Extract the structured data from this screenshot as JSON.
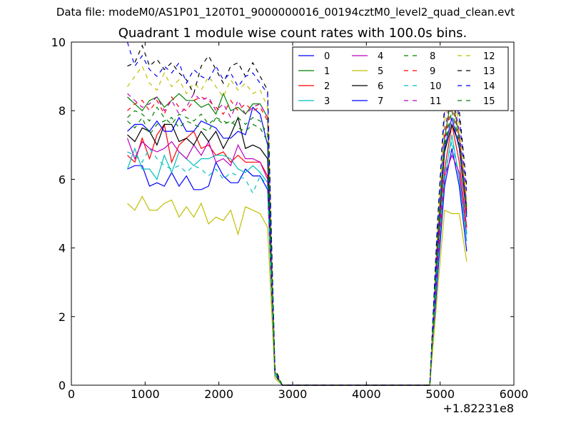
{
  "suptitle": "Data file: modeM0/AS1P01_120T01_9000000016_00194cztM0_level2_quad_clean.evt",
  "chart_data": {
    "type": "line",
    "title": "Quadrant 1 module wise count rates with 100.0s bins.",
    "xlabel": "",
    "ylabel": "",
    "xlim": [
      0,
      6000
    ],
    "ylim": [
      0,
      10
    ],
    "x_offset_label": "+1.82231e8",
    "x_ticks": [
      0,
      1000,
      2000,
      3000,
      4000,
      5000,
      6000
    ],
    "y_ticks": [
      0,
      2,
      4,
      6,
      8,
      10
    ],
    "grid": false,
    "legend_position": "top-right",
    "legend_columns": 4,
    "x": [
      760,
      860,
      960,
      1060,
      1160,
      1260,
      1360,
      1460,
      1560,
      1660,
      1760,
      1860,
      1960,
      2060,
      2160,
      2260,
      2360,
      2460,
      2560,
      2660,
      2760,
      2860,
      2960,
      3060,
      3160,
      3260,
      3360,
      3460,
      3560,
      3660,
      3760,
      3860,
      3960,
      4060,
      4160,
      4260,
      4360,
      4460,
      4560,
      4660,
      4760,
      4860,
      4960,
      5060,
      5160,
      5260,
      5360
    ],
    "series": [
      {
        "name": "0",
        "color": "#0000ff",
        "dash": "solid",
        "values": [
          6.3,
          6.4,
          6.4,
          5.8,
          5.9,
          5.8,
          6.2,
          5.8,
          6.1,
          5.7,
          5.7,
          5.8,
          6.5,
          6.1,
          5.9,
          5.9,
          6.3,
          6.1,
          6.1,
          5.7,
          0.3,
          0,
          0,
          0,
          0,
          0,
          0,
          0,
          0,
          0,
          0,
          0,
          0,
          0,
          0,
          0,
          0,
          0,
          0,
          0,
          0,
          0,
          3.0,
          5.8,
          6.9,
          5.8,
          3.9
        ]
      },
      {
        "name": "1",
        "color": "#008000",
        "dash": "solid",
        "values": [
          8.4,
          8.2,
          8.0,
          8.3,
          8.4,
          8.1,
          8.3,
          8.5,
          8.3,
          8.3,
          8.1,
          8.2,
          7.9,
          8.5,
          8.0,
          8.1,
          7.9,
          8.2,
          8.2,
          7.8,
          0.4,
          0,
          0,
          0,
          0,
          0,
          0,
          0,
          0,
          0,
          0,
          0,
          0,
          0,
          0,
          0,
          0,
          0,
          0,
          0,
          0,
          0,
          4.2,
          7.2,
          8.5,
          7.2,
          5.2
        ]
      },
      {
        "name": "2",
        "color": "#ff0000",
        "dash": "solid",
        "values": [
          6.7,
          6.5,
          7.2,
          6.6,
          7.3,
          7.6,
          6.5,
          7.0,
          7.2,
          7.4,
          6.9,
          7.0,
          6.7,
          6.8,
          6.5,
          6.7,
          6.5,
          6.5,
          6.5,
          6.1,
          0.3,
          0,
          0,
          0,
          0,
          0,
          0,
          0,
          0,
          0,
          0,
          0,
          0,
          0,
          0,
          0,
          0,
          0,
          0,
          0,
          0,
          0,
          3.6,
          6.3,
          7.6,
          6.5,
          4.6
        ]
      },
      {
        "name": "3",
        "color": "#00bfbf",
        "dash": "solid",
        "values": [
          6.3,
          6.9,
          6.3,
          6.3,
          6.0,
          6.7,
          6.2,
          6.8,
          6.6,
          6.4,
          6.6,
          6.6,
          6.7,
          6.7,
          6.6,
          6.3,
          6.2,
          6.4,
          6.2,
          5.9,
          0.3,
          0,
          0,
          0,
          0,
          0,
          0,
          0,
          0,
          0,
          0,
          0,
          0,
          0,
          0,
          0,
          0,
          0,
          0,
          0,
          0,
          0,
          3.3,
          6.0,
          7.3,
          6.0,
          4.2
        ]
      },
      {
        "name": "4",
        "color": "#bf00bf",
        "dash": "solid",
        "values": [
          7.2,
          6.6,
          7.1,
          6.9,
          6.8,
          6.9,
          7.1,
          6.8,
          6.6,
          7.0,
          6.7,
          7.1,
          6.5,
          6.6,
          6.4,
          7.0,
          6.6,
          6.6,
          6.5,
          6.0,
          0.3,
          0,
          0,
          0,
          0,
          0,
          0,
          0,
          0,
          0,
          0,
          0,
          0,
          0,
          0,
          0,
          0,
          0,
          0,
          0,
          0,
          0,
          3.4,
          6.1,
          6.7,
          6.2,
          4.4
        ]
      },
      {
        "name": "5",
        "color": "#bfbf00",
        "dash": "solid",
        "values": [
          5.3,
          5.1,
          5.5,
          5.1,
          5.1,
          5.3,
          5.4,
          4.9,
          5.2,
          4.9,
          5.3,
          4.7,
          4.9,
          4.8,
          5.1,
          4.4,
          5.2,
          5.1,
          5.0,
          4.6,
          0.2,
          0,
          0,
          0,
          0,
          0,
          0,
          0,
          0,
          0,
          0,
          0,
          0,
          0,
          0,
          0,
          0,
          0,
          0,
          0,
          0,
          0,
          2.6,
          5.1,
          5.0,
          5.0,
          3.6
        ]
      },
      {
        "name": "6",
        "color": "#000000",
        "dash": "solid",
        "values": [
          7.3,
          7.1,
          7.5,
          7.4,
          7.0,
          7.6,
          7.6,
          7.1,
          7.2,
          7.0,
          7.4,
          7.1,
          7.4,
          6.9,
          7.3,
          7.8,
          6.9,
          7.0,
          6.9,
          6.6,
          0.3,
          0,
          0,
          0,
          0,
          0,
          0,
          0,
          0,
          0,
          0,
          0,
          0,
          0,
          0,
          0,
          0,
          0,
          0,
          0,
          0,
          0,
          3.9,
          6.8,
          7.6,
          7.0,
          5.0
        ]
      },
      {
        "name": "7",
        "color": "#0000ff",
        "dash": "solid",
        "values": [
          7.4,
          7.6,
          7.6,
          7.4,
          7.7,
          7.4,
          7.4,
          7.8,
          7.4,
          7.4,
          7.7,
          7.6,
          7.5,
          7.2,
          7.2,
          7.4,
          7.3,
          8.1,
          7.9,
          7.0,
          0.4,
          0,
          0,
          0,
          0,
          0,
          0,
          0,
          0,
          0,
          0,
          0,
          0,
          0,
          0,
          0,
          0,
          0,
          0,
          0,
          0,
          0,
          3.9,
          6.9,
          7.8,
          6.9,
          4.9
        ]
      },
      {
        "name": "8",
        "color": "#008000",
        "dash": "dashed",
        "values": [
          7.7,
          7.5,
          7.8,
          7.3,
          7.6,
          7.7,
          7.8,
          7.5,
          7.7,
          7.6,
          7.5,
          7.4,
          7.8,
          7.6,
          7.7,
          7.5,
          7.4,
          7.6,
          7.5,
          7.1,
          0.3,
          0,
          0,
          0,
          0,
          0,
          0,
          0,
          0,
          0,
          0,
          0,
          0,
          0,
          0,
          0,
          0,
          0,
          0,
          0,
          0,
          0,
          4.0,
          7.0,
          8.0,
          7.0,
          5.0
        ]
      },
      {
        "name": "9",
        "color": "#ff0000",
        "dash": "dashed",
        "values": [
          8.0,
          8.2,
          8.3,
          8.0,
          8.3,
          7.9,
          8.4,
          8.1,
          8.0,
          8.3,
          8.4,
          8.3,
          8.1,
          7.9,
          8.3,
          8.0,
          8.2,
          8.0,
          8.1,
          7.7,
          0.4,
          0,
          0,
          0,
          0,
          0,
          0,
          0,
          0,
          0,
          0,
          0,
          0,
          0,
          0,
          0,
          0,
          0,
          0,
          0,
          0,
          0,
          4.1,
          7.2,
          8.2,
          7.2,
          5.1
        ]
      },
      {
        "name": "10",
        "color": "#00bfbf",
        "dash": "dashed",
        "values": [
          6.8,
          6.7,
          6.5,
          6.9,
          6.6,
          6.4,
          6.3,
          6.4,
          6.2,
          6.4,
          6.3,
          6.1,
          6.3,
          6.0,
          6.2,
          6.1,
          6.0,
          5.6,
          6.1,
          5.8,
          0.3,
          0,
          0,
          0,
          0,
          0,
          0,
          0,
          0,
          0,
          0,
          0,
          0,
          0,
          0,
          0,
          0,
          0,
          0,
          0,
          0,
          0,
          3.4,
          6.2,
          7.1,
          6.0,
          4.4
        ]
      },
      {
        "name": "11",
        "color": "#bf00bf",
        "dash": "dashed",
        "values": [
          8.5,
          8.3,
          8.1,
          8.2,
          8.4,
          8.0,
          8.3,
          7.9,
          8.1,
          8.5,
          8.3,
          8.4,
          8.0,
          8.2,
          7.8,
          8.3,
          7.9,
          8.1,
          8.2,
          7.8,
          0.4,
          0,
          0,
          0,
          0,
          0,
          0,
          0,
          0,
          0,
          0,
          0,
          0,
          0,
          0,
          0,
          0,
          0,
          0,
          0,
          0,
          0,
          4.2,
          7.4,
          8.6,
          7.4,
          5.3
        ]
      },
      {
        "name": "12",
        "color": "#bfbf00",
        "dash": "dashed",
        "values": [
          8.7,
          9.0,
          9.3,
          8.8,
          8.6,
          9.1,
          8.7,
          8.9,
          8.5,
          8.8,
          8.6,
          9.0,
          8.7,
          8.4,
          8.9,
          8.6,
          8.8,
          8.5,
          8.6,
          8.1,
          0.4,
          0,
          0,
          0,
          0,
          0,
          0,
          0,
          0,
          0,
          0,
          0,
          0,
          0,
          0,
          0,
          0,
          0,
          0,
          0,
          0,
          0,
          4.3,
          7.7,
          8.8,
          7.6,
          5.4
        ]
      },
      {
        "name": "13",
        "color": "#000000",
        "dash": "dashed",
        "values": [
          9.3,
          9.4,
          9.9,
          9.3,
          9.5,
          9.2,
          9.4,
          9.1,
          8.9,
          8.5,
          9.3,
          9.6,
          9.2,
          8.8,
          9.3,
          9.4,
          9.0,
          9.4,
          9.0,
          8.6,
          0.5,
          0,
          0,
          0,
          0,
          0,
          0,
          0,
          0,
          0,
          0,
          0,
          0,
          0,
          0,
          0,
          0,
          0,
          0,
          0,
          0,
          0,
          4.6,
          8.2,
          9.1,
          8.0,
          5.8
        ]
      },
      {
        "name": "14",
        "color": "#0000ff",
        "dash": "dashed",
        "values": [
          10.0,
          9.3,
          9.6,
          9.2,
          9.0,
          9.3,
          9.1,
          9.4,
          8.8,
          9.2,
          9.0,
          8.9,
          9.3,
          8.9,
          9.1,
          8.7,
          9.0,
          9.1,
          8.8,
          8.5,
          0.4,
          0,
          0,
          0,
          0,
          0,
          0,
          0,
          0,
          0,
          0,
          0,
          0,
          0,
          0,
          0,
          0,
          0,
          0,
          0,
          0,
          0,
          4.5,
          8.0,
          8.9,
          7.8,
          5.6
        ]
      },
      {
        "name": "15",
        "color": "#008000",
        "dash": "dashed",
        "values": [
          7.8,
          8.0,
          7.9,
          7.7,
          8.1,
          7.8,
          7.6,
          7.9,
          7.8,
          7.7,
          7.9,
          7.6,
          7.8,
          7.7,
          7.6,
          7.8,
          7.6,
          7.8,
          7.7,
          7.3,
          0.4,
          0,
          0,
          0,
          0,
          0,
          0,
          0,
          0,
          0,
          0,
          0,
          0,
          0,
          0,
          0,
          0,
          0,
          0,
          0,
          0,
          0,
          4.0,
          7.1,
          8.0,
          7.1,
          5.1
        ]
      }
    ]
  }
}
